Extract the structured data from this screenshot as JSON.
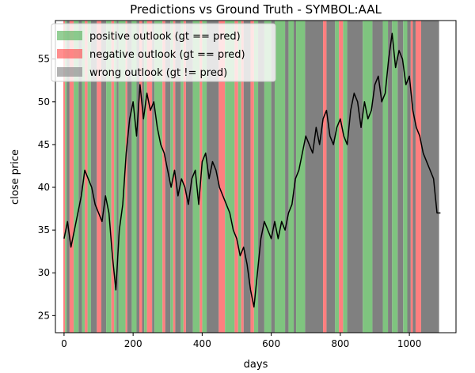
{
  "chart_data": {
    "type": "line",
    "title": "Predictions vs Ground Truth - SYMBOL:AAL",
    "xlabel": "days",
    "ylabel": "close price",
    "xlim": [
      -25,
      1135
    ],
    "ylim": [
      23,
      59.5
    ],
    "xticks": [
      0,
      200,
      400,
      600,
      800,
      1000
    ],
    "yticks": [
      25,
      30,
      35,
      40,
      45,
      50,
      55
    ],
    "grid": false,
    "legend_position": "top-left",
    "legend": [
      {
        "label": "positive outlook (gt == pred)",
        "color": "#4caf50"
      },
      {
        "label": "negative outlook (gt == pred)",
        "color": "#ff4444"
      },
      {
        "label": "wrong outlook (gt != pred)",
        "color": "#808080"
      }
    ],
    "colors": {
      "positive": "#7fc47f",
      "negative": "#ff7f7f",
      "wrong": "#808080",
      "line": "#000000"
    },
    "series": [
      {
        "x": [
          0,
          10,
          20,
          30,
          40,
          50,
          60,
          70,
          80,
          90,
          100,
          110,
          120,
          130,
          140,
          150,
          160,
          170,
          180,
          190,
          200,
          210,
          220,
          230,
          240,
          250,
          260,
          270,
          280,
          290,
          300,
          310,
          320,
          330,
          340,
          350,
          360,
          370,
          380,
          390,
          400,
          410,
          420,
          430,
          440,
          450,
          460,
          470,
          480,
          490,
          500,
          510,
          520,
          530,
          540,
          550,
          560,
          570,
          580,
          590,
          600,
          610,
          620,
          630,
          640,
          650,
          660,
          670,
          680,
          690,
          700,
          710,
          720,
          730,
          740,
          750,
          760,
          770,
          780,
          790,
          800,
          810,
          820,
          830,
          840,
          850,
          860,
          870,
          880,
          890,
          900,
          910,
          920,
          930,
          940,
          950,
          960,
          970,
          980,
          990,
          1000,
          1010,
          1020,
          1030,
          1040,
          1050,
          1060,
          1070,
          1080,
          1090
        ],
        "y": [
          34,
          36,
          33,
          35,
          37,
          39,
          42,
          41,
          40,
          38,
          37,
          36,
          39,
          37,
          32,
          28,
          35,
          38,
          44,
          48,
          50,
          46,
          52,
          48,
          51,
          49,
          50,
          47,
          45,
          44,
          42,
          40,
          42,
          39,
          41,
          40,
          38,
          41,
          42,
          38,
          43,
          44,
          41,
          43,
          42,
          40,
          39,
          38,
          37,
          35,
          34,
          32,
          33,
          31,
          28,
          26,
          30,
          34,
          36,
          35,
          34,
          36,
          34,
          36,
          35,
          37,
          38,
          41,
          42,
          44,
          46,
          45,
          44,
          47,
          45,
          48,
          49,
          46,
          45,
          47,
          48,
          46,
          45,
          49,
          51,
          50,
          47,
          50,
          48,
          49,
          52,
          53,
          50,
          51,
          55,
          58,
          54,
          56,
          55,
          52,
          53,
          49,
          47,
          46,
          44,
          43,
          42,
          41,
          37,
          37
        ]
      }
    ],
    "regions": [
      {
        "x0": -2,
        "x1": 3,
        "type": "negative"
      },
      {
        "x0": 3,
        "x1": 8,
        "type": "positive"
      },
      {
        "x0": 8,
        "x1": 16,
        "type": "wrong"
      },
      {
        "x0": 16,
        "x1": 28,
        "type": "negative"
      },
      {
        "x0": 28,
        "x1": 42,
        "type": "positive"
      },
      {
        "x0": 42,
        "x1": 52,
        "type": "wrong"
      },
      {
        "x0": 52,
        "x1": 60,
        "type": "positive"
      },
      {
        "x0": 60,
        "x1": 68,
        "type": "negative"
      },
      {
        "x0": 68,
        "x1": 78,
        "type": "positive"
      },
      {
        "x0": 78,
        "x1": 95,
        "type": "wrong"
      },
      {
        "x0": 95,
        "x1": 108,
        "type": "negative"
      },
      {
        "x0": 108,
        "x1": 122,
        "type": "wrong"
      },
      {
        "x0": 122,
        "x1": 137,
        "type": "positive"
      },
      {
        "x0": 137,
        "x1": 145,
        "type": "negative"
      },
      {
        "x0": 145,
        "x1": 152,
        "type": "positive"
      },
      {
        "x0": 152,
        "x1": 158,
        "type": "wrong"
      },
      {
        "x0": 158,
        "x1": 178,
        "type": "positive"
      },
      {
        "x0": 178,
        "x1": 183,
        "type": "negative"
      },
      {
        "x0": 183,
        "x1": 196,
        "type": "wrong"
      },
      {
        "x0": 196,
        "x1": 210,
        "type": "positive"
      },
      {
        "x0": 210,
        "x1": 218,
        "type": "wrong"
      },
      {
        "x0": 218,
        "x1": 226,
        "type": "negative"
      },
      {
        "x0": 226,
        "x1": 232,
        "type": "wrong"
      },
      {
        "x0": 232,
        "x1": 240,
        "type": "positive"
      },
      {
        "x0": 240,
        "x1": 255,
        "type": "negative"
      },
      {
        "x0": 255,
        "x1": 262,
        "type": "wrong"
      },
      {
        "x0": 262,
        "x1": 285,
        "type": "positive"
      },
      {
        "x0": 285,
        "x1": 293,
        "type": "negative"
      },
      {
        "x0": 293,
        "x1": 308,
        "type": "wrong"
      },
      {
        "x0": 308,
        "x1": 316,
        "type": "positive"
      },
      {
        "x0": 316,
        "x1": 322,
        "type": "negative"
      },
      {
        "x0": 322,
        "x1": 338,
        "type": "wrong"
      },
      {
        "x0": 338,
        "x1": 346,
        "type": "positive"
      },
      {
        "x0": 346,
        "x1": 353,
        "type": "negative"
      },
      {
        "x0": 353,
        "x1": 373,
        "type": "wrong"
      },
      {
        "x0": 373,
        "x1": 393,
        "type": "positive"
      },
      {
        "x0": 393,
        "x1": 400,
        "type": "negative"
      },
      {
        "x0": 400,
        "x1": 413,
        "type": "positive"
      },
      {
        "x0": 413,
        "x1": 448,
        "type": "wrong"
      },
      {
        "x0": 448,
        "x1": 466,
        "type": "negative"
      },
      {
        "x0": 466,
        "x1": 494,
        "type": "positive"
      },
      {
        "x0": 494,
        "x1": 504,
        "type": "negative"
      },
      {
        "x0": 504,
        "x1": 513,
        "type": "positive"
      },
      {
        "x0": 513,
        "x1": 520,
        "type": "negative"
      },
      {
        "x0": 520,
        "x1": 540,
        "type": "wrong"
      },
      {
        "x0": 540,
        "x1": 550,
        "type": "negative"
      },
      {
        "x0": 550,
        "x1": 562,
        "type": "positive"
      },
      {
        "x0": 562,
        "x1": 580,
        "type": "wrong"
      },
      {
        "x0": 580,
        "x1": 600,
        "type": "positive"
      },
      {
        "x0": 600,
        "x1": 610,
        "type": "wrong"
      },
      {
        "x0": 610,
        "x1": 640,
        "type": "positive"
      },
      {
        "x0": 640,
        "x1": 650,
        "type": "wrong"
      },
      {
        "x0": 650,
        "x1": 665,
        "type": "positive"
      },
      {
        "x0": 665,
        "x1": 672,
        "type": "wrong"
      },
      {
        "x0": 672,
        "x1": 698,
        "type": "positive"
      },
      {
        "x0": 698,
        "x1": 750,
        "type": "wrong"
      },
      {
        "x0": 750,
        "x1": 760,
        "type": "negative"
      },
      {
        "x0": 760,
        "x1": 785,
        "type": "wrong"
      },
      {
        "x0": 785,
        "x1": 796,
        "type": "positive"
      },
      {
        "x0": 796,
        "x1": 808,
        "type": "negative"
      },
      {
        "x0": 808,
        "x1": 820,
        "type": "positive"
      },
      {
        "x0": 820,
        "x1": 865,
        "type": "wrong"
      },
      {
        "x0": 865,
        "x1": 893,
        "type": "positive"
      },
      {
        "x0": 893,
        "x1": 923,
        "type": "wrong"
      },
      {
        "x0": 923,
        "x1": 938,
        "type": "positive"
      },
      {
        "x0": 938,
        "x1": 950,
        "type": "wrong"
      },
      {
        "x0": 950,
        "x1": 966,
        "type": "positive"
      },
      {
        "x0": 966,
        "x1": 982,
        "type": "wrong"
      },
      {
        "x0": 982,
        "x1": 994,
        "type": "positive"
      },
      {
        "x0": 994,
        "x1": 1004,
        "type": "wrong"
      },
      {
        "x0": 1004,
        "x1": 1010,
        "type": "negative"
      },
      {
        "x0": 1010,
        "x1": 1018,
        "type": "wrong"
      },
      {
        "x0": 1018,
        "x1": 1034,
        "type": "negative"
      },
      {
        "x0": 1034,
        "x1": 1086,
        "type": "wrong"
      }
    ]
  }
}
